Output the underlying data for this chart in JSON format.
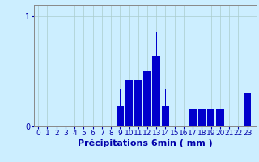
{
  "xlabel": "Précipitations 6min ( mm )",
  "bar_color": "#0000cc",
  "background_color": "#cceeff",
  "grid_color": "#aacccc",
  "axis_color": "#888888",
  "yticks": [
    0,
    1
  ],
  "ylim": [
    0,
    1.1
  ],
  "xlim": [
    -0.5,
    24
  ],
  "xtick_labels": [
    "0",
    "1",
    "2",
    "3",
    "4",
    "5",
    "6",
    "7",
    "8",
    "9",
    "10",
    "11",
    "12",
    "13",
    "14",
    "15",
    "16",
    "17",
    "18",
    "19",
    "20",
    "21",
    "22",
    "23"
  ],
  "values": [
    0,
    0,
    0,
    0,
    0,
    0,
    0,
    0,
    0,
    0.18,
    0.42,
    0.42,
    0.5,
    0.64,
    0.18,
    0,
    0,
    0.16,
    0.16,
    0.16,
    0.16,
    0,
    0,
    0.3
  ],
  "thin_values": [
    0,
    0,
    0,
    0,
    0,
    0,
    0,
    0,
    0,
    0.34,
    0.46,
    0.34,
    0.34,
    0.85,
    0.34,
    0,
    0,
    0.32,
    0,
    0,
    0,
    0,
    0,
    0
  ],
  "label_color": "#0000aa",
  "label_fontsize": 8,
  "tick_fontsize": 6.5
}
